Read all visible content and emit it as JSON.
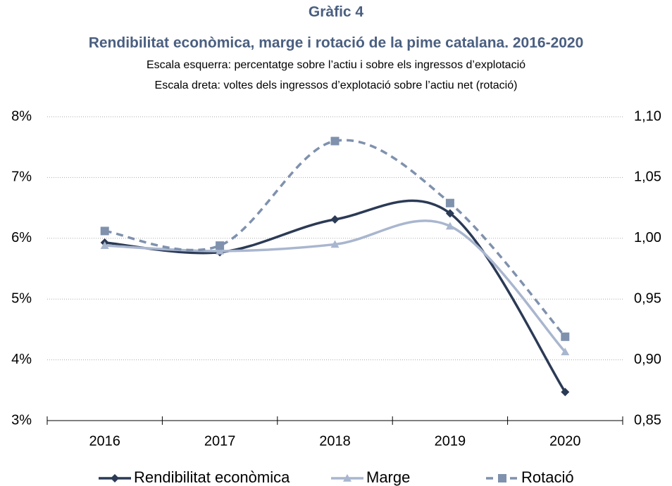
{
  "chart_data": {
    "type": "line",
    "title": "Gràfic 4",
    "subtitle": "Rendibilitat econòmica, marge i rotació de la pime catalana. 2016-2020",
    "notes": [
      "Escala esquerra: percentatge sobre l’actiu i sobre els ingressos d’explotació",
      "Escala dreta: voltes dels ingressos d’explotació sobre l’actiu net (rotació)"
    ],
    "categories": [
      "2016",
      "2017",
      "2018",
      "2019",
      "2020"
    ],
    "series": [
      {
        "name": "Rendibilitat econòmica",
        "color": "#2b3a55",
        "marker": "diamond",
        "dash": false,
        "values": [
          5.93,
          5.77,
          6.31,
          6.41,
          3.47
        ]
      },
      {
        "name": "Marge",
        "color": "#a9b6cf",
        "marker": "triangle",
        "dash": false,
        "values": [
          5.88,
          5.79,
          5.9,
          6.2,
          4.13
        ]
      },
      {
        "name": "Rotació",
        "color": "#7f91ad",
        "marker": "square",
        "dash": true,
        "axis": "y2",
        "values": [
          1.006,
          0.994,
          1.08,
          1.029,
          0.919
        ]
      }
    ],
    "ylim": [
      3,
      8
    ],
    "yticks": [
      {
        "value": 3,
        "label": "3%"
      },
      {
        "value": 4,
        "label": "4%"
      },
      {
        "value": 5,
        "label": "5%"
      },
      {
        "value": 6,
        "label": "6%"
      },
      {
        "value": 7,
        "label": "7%"
      },
      {
        "value": 8,
        "label": "8%"
      }
    ],
    "y2lim": [
      0.85,
      1.1
    ],
    "y2ticks": [
      {
        "value": 0.85,
        "label": "0,85"
      },
      {
        "value": 0.9,
        "label": "0,90"
      },
      {
        "value": 0.95,
        "label": "0,95"
      },
      {
        "value": 1.0,
        "label": "1,00"
      },
      {
        "value": 1.05,
        "label": "1,05"
      },
      {
        "value": 1.1,
        "label": "1,10"
      }
    ],
    "grid": true,
    "smooth": true,
    "legend": "bottom"
  }
}
